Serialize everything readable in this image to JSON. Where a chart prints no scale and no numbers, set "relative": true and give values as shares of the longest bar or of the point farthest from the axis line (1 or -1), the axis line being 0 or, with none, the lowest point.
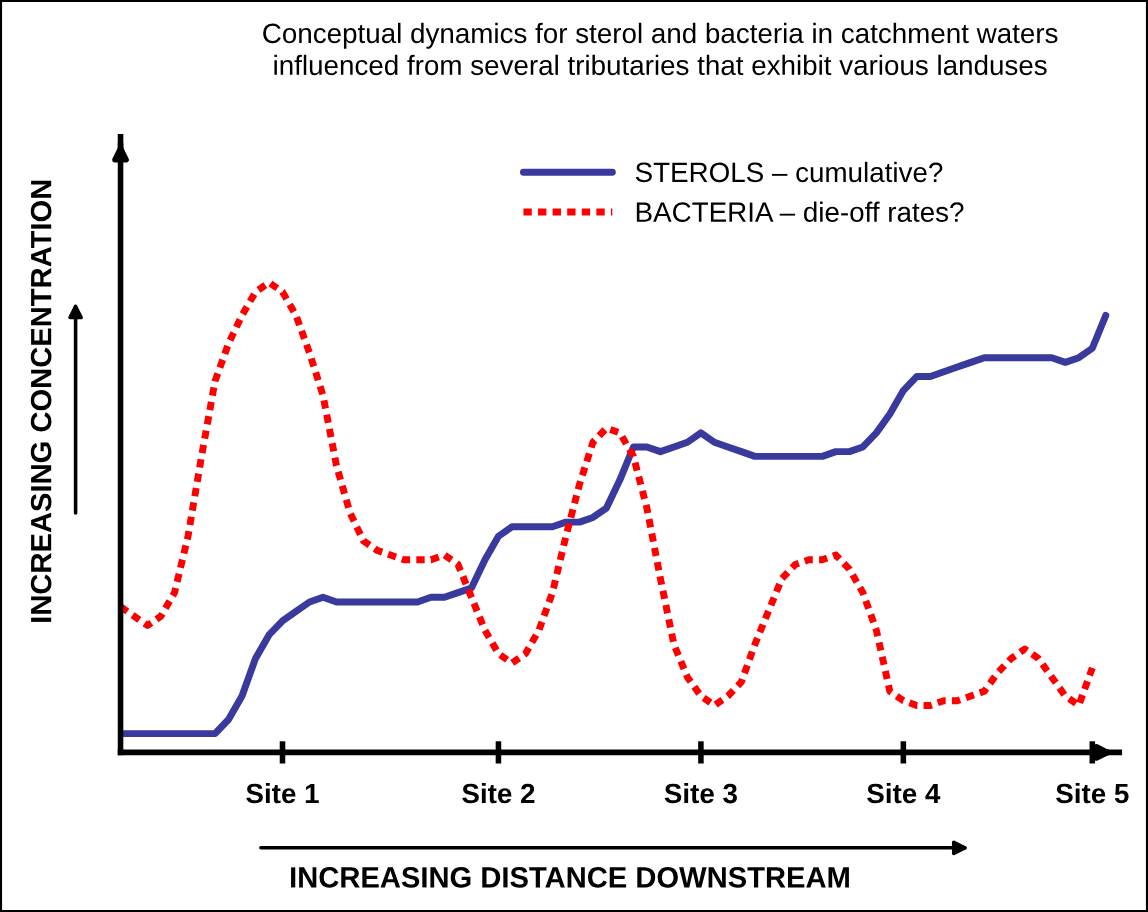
{
  "chart_data": {
    "type": "line",
    "title": "Conceptual dynamics for sterol and bacteria in catchment waters\ninfluenced from several tributaries that exhibit various landuses",
    "xlabel": "INCREASING DISTANCE DOWNSTREAM",
    "ylabel": "INCREASING CONCENTRATION",
    "relative": true,
    "tick_labels": "x",
    "grid": false,
    "legend": "top right",
    "marker": "none",
    "categories": [
      null,
      null,
      null,
      null,
      null,
      null,
      null,
      null,
      null,
      null,
      null,
      null,
      "Site 1",
      null,
      null,
      null,
      null,
      null,
      null,
      null,
      null,
      null,
      null,
      null,
      null,
      null,
      null,
      null,
      "Site 2",
      null,
      null,
      null,
      null,
      null,
      null,
      null,
      null,
      null,
      null,
      null,
      null,
      null,
      null,
      "Site 3",
      null,
      null,
      null,
      null,
      null,
      null,
      null,
      null,
      null,
      null,
      null,
      null,
      null,
      null,
      "Site 4",
      null,
      null,
      null,
      null,
      null,
      null,
      null,
      null,
      null,
      null,
      null,
      null,
      null,
      "Site 5",
      null
    ],
    "series": [
      {
        "name": "STEROLS – cumulative?",
        "color": "#3a3a9e",
        "line_style": "solid",
        "values": [
          0.04,
          0.04,
          0.04,
          0.04,
          0.04,
          0.04,
          0.04,
          0.04,
          0.07,
          0.12,
          0.2,
          0.25,
          0.28,
          0.3,
          0.32,
          0.33,
          0.32,
          0.32,
          0.32,
          0.32,
          0.32,
          0.32,
          0.32,
          0.33,
          0.33,
          0.34,
          0.35,
          0.41,
          0.46,
          0.48,
          0.48,
          0.48,
          0.48,
          0.49,
          0.49,
          0.5,
          0.52,
          0.58,
          0.65,
          0.65,
          0.64,
          0.65,
          0.66,
          0.68,
          0.66,
          0.65,
          0.64,
          0.63,
          0.63,
          0.63,
          0.63,
          0.63,
          0.63,
          0.64,
          0.64,
          0.65,
          0.68,
          0.72,
          0.77,
          0.8,
          0.8,
          0.81,
          0.82,
          0.83,
          0.84,
          0.84,
          0.84,
          0.84,
          0.84,
          0.84,
          0.83,
          0.84,
          0.86,
          0.93
        ]
      },
      {
        "name": "BACTERIA – die-off rates?",
        "color": "#ff0000",
        "line_style": "dotted",
        "values": [
          0.31,
          0.29,
          0.27,
          0.29,
          0.34,
          0.46,
          0.63,
          0.79,
          0.87,
          0.93,
          0.98,
          1,
          0.98,
          0.93,
          0.85,
          0.76,
          0.61,
          0.51,
          0.45,
          0.43,
          0.42,
          0.41,
          0.41,
          0.41,
          0.42,
          0.4,
          0.33,
          0.26,
          0.21,
          0.19,
          0.21,
          0.26,
          0.34,
          0.46,
          0.57,
          0.66,
          0.69,
          0.68,
          0.63,
          0.52,
          0.37,
          0.23,
          0.16,
          0.12,
          0.1,
          0.12,
          0.15,
          0.23,
          0.3,
          0.37,
          0.4,
          0.41,
          0.41,
          0.42,
          0.39,
          0.34,
          0.26,
          0.13,
          0.11,
          0.1,
          0.1,
          0.11,
          0.11,
          0.12,
          0.13,
          0.17,
          0.2,
          0.22,
          0.2,
          0.16,
          0.12,
          0.1,
          0.18,
          null
        ]
      }
    ]
  }
}
